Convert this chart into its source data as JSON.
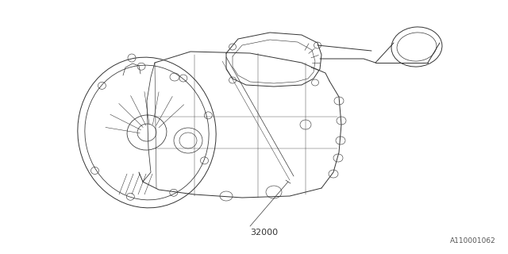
{
  "bg_color": "#ffffff",
  "line_color": "#333333",
  "line_width": 0.7,
  "part_number": "32000",
  "diagram_id": "A110001062",
  "fig_width": 6.4,
  "fig_height": 3.2,
  "dpi": 100
}
